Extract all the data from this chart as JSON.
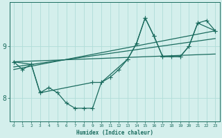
{
  "xlabel": "Humidex (Indice chaleur)",
  "background_color": "#d4efec",
  "line_color": "#1a6b5e",
  "grid_color": "#b0ddd8",
  "xlim": [
    -0.5,
    23.5
  ],
  "ylim": [
    7.55,
    9.85
  ],
  "yticks": [
    8,
    9
  ],
  "xticks": [
    0,
    1,
    2,
    3,
    4,
    5,
    6,
    7,
    8,
    9,
    10,
    11,
    12,
    13,
    14,
    15,
    16,
    17,
    18,
    19,
    20,
    21,
    22,
    23
  ],
  "series_zigzag_x": [
    0,
    1,
    2,
    3,
    4,
    5,
    6,
    7,
    8,
    9,
    10,
    11,
    12,
    13,
    14,
    15,
    16,
    17,
    18,
    19,
    20,
    21,
    22,
    23
  ],
  "series_zigzag_y": [
    8.7,
    8.55,
    8.65,
    8.1,
    8.2,
    8.1,
    7.9,
    7.8,
    7.8,
    7.8,
    8.3,
    8.4,
    8.55,
    8.75,
    9.05,
    9.55,
    9.2,
    8.8,
    8.8,
    8.8,
    9.0,
    9.45,
    9.5,
    9.3
  ],
  "series_smooth_x": [
    0,
    2,
    3,
    9,
    10,
    13,
    14,
    15,
    16,
    17,
    19,
    20,
    21,
    23
  ],
  "series_smooth_y": [
    8.7,
    8.65,
    8.1,
    8.3,
    8.3,
    8.75,
    9.05,
    9.55,
    9.2,
    8.8,
    8.8,
    9.0,
    9.45,
    9.3
  ],
  "trend1_x": [
    0,
    23
  ],
  "trend1_y": [
    8.6,
    9.15
  ],
  "trend2_x": [
    0,
    23
  ],
  "trend2_y": [
    8.7,
    8.85
  ],
  "trend3_x": [
    0,
    23
  ],
  "trend3_y": [
    8.55,
    9.3
  ]
}
